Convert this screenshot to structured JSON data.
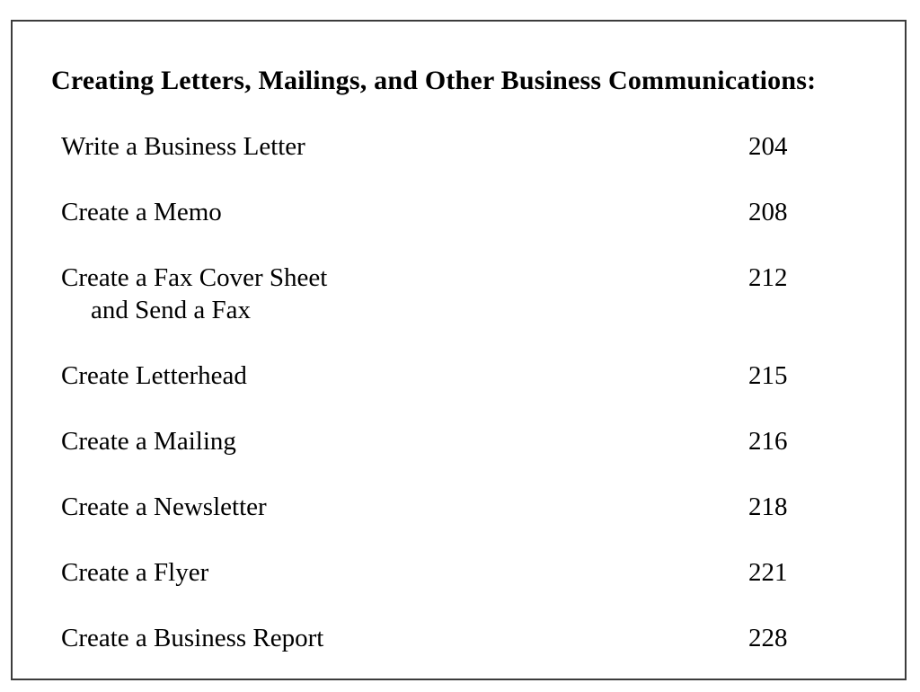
{
  "document": {
    "heading": "Creating Letters, Mailings, and Other Business Communications:",
    "entries": [
      {
        "title": "Write a Business Letter",
        "page": "204"
      },
      {
        "title": "Create a Memo",
        "page": "208"
      },
      {
        "title": "Create a Fax Cover Sheet",
        "title_line2": "and Send a Fax",
        "page": "212"
      },
      {
        "title": "Create Letterhead",
        "page": "215"
      },
      {
        "title": "Create a Mailing",
        "page": "216"
      },
      {
        "title": "Create a Newsletter",
        "page": "218"
      },
      {
        "title": "Create a Flyer",
        "page": "221"
      },
      {
        "title": "Create a Business Report",
        "page": "228"
      }
    ],
    "colors": {
      "text": "#000000",
      "border": "#3c3c3c",
      "background": "#ffffff"
    }
  }
}
